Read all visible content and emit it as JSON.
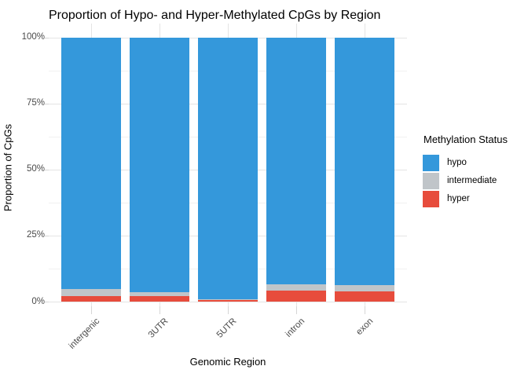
{
  "chart_data": {
    "type": "bar",
    "variant": "stacked-percent",
    "title": "Proportion of Hypo- and Hyper-Methylated CpGs by Region",
    "xlabel": "Genomic Region",
    "ylabel": "Proportion of CpGs",
    "categories": [
      "intergenic",
      "3UTR",
      "5UTR",
      "intron",
      "exon"
    ],
    "series": [
      {
        "name": "hypo",
        "color": "#3498db",
        "values": [
          95.3,
          96.5,
          99.2,
          93.4,
          93.8
        ]
      },
      {
        "name": "intermediate",
        "color": "#c0c5c9",
        "values": [
          2.5,
          1.5,
          0.3,
          2.4,
          2.3
        ]
      },
      {
        "name": "hyper",
        "color": "#e74c3c",
        "values": [
          2.2,
          2.0,
          0.5,
          4.2,
          3.9
        ]
      }
    ],
    "stack_order_bottom_to_top": [
      "hyper",
      "intermediate",
      "hypo"
    ],
    "y_ticks": {
      "labels": [
        "0%",
        "25%",
        "50%",
        "75%",
        "100%"
      ],
      "values": [
        0,
        25,
        50,
        75,
        100
      ]
    },
    "y_minor_gridlines": [
      12.5,
      37.5,
      62.5,
      87.5
    ],
    "ylim": [
      0,
      100
    ],
    "grid": "on",
    "legend": {
      "title": "Methylation Status",
      "position": "right"
    },
    "colors": {
      "hypo": "#3498db",
      "intermediate": "#c0c5c9",
      "hyper": "#e74c3c",
      "grid_major": "#e4e4e4",
      "grid_minor": "#f1f1f1",
      "tick_text": "#4a4a4a"
    }
  }
}
